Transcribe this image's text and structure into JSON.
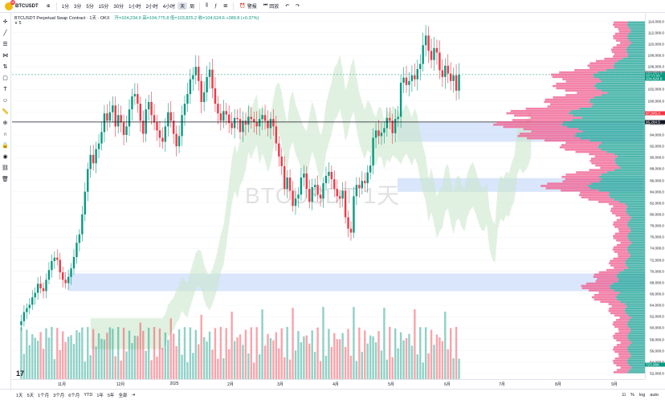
{
  "topbar": {
    "symbol": "BTCUSDT",
    "badge": "11",
    "timeframes": [
      "1分",
      "3分",
      "5分",
      "15分",
      "30分",
      "1小时",
      "2小时",
      "4小时",
      "天",
      "周"
    ],
    "active_timeframe": "天",
    "alert_label": "警报",
    "replay_label": "回放"
  },
  "legend": {
    "title": "BTCUSDT Perpetual Swap Contract · 1天 · OKX",
    "ohlc": "开=104,234.9  高=104,775.8  低=103,825.2  收=104,624.6  +389.8 (+0.37%)",
    "indicator": "∨ 5"
  },
  "watermark": "BTCUSDT 1天",
  "price_scale": {
    "ticks": [
      "114,000.0",
      "112,000.0",
      "110,000.0",
      "108,000.0",
      "106,000.0",
      "104,000.0",
      "102,000.0",
      "100,000.0",
      "98,000.0",
      "96,000.0",
      "94,000.0",
      "92,000.0",
      "90,000.0",
      "88,000.0",
      "86,000.0",
      "84,000.0",
      "82,000.0",
      "80,000.0",
      "78,000.0",
      "76,000.0",
      "74,000.0",
      "72,000.0",
      "70,000.0",
      "68,000.0",
      "66,000.0",
      "64,000.0",
      "62,000.0",
      "60,000.0",
      "58,000.0",
      "56,000.0",
      "54,000.0",
      "52,000.0"
    ],
    "labels": [
      {
        "text": "104,851.7",
        "color": "#787b86"
      },
      {
        "text": "104,624.6",
        "color": "#089981"
      },
      {
        "text": "20:27:06",
        "color": "#089981"
      },
      {
        "text": "104,624.6",
        "color": "#089981"
      },
      {
        "text": "97,845.0",
        "color": "#f23645"
      },
      {
        "text": "96,284.5",
        "color": "#131722"
      },
      {
        "text": "723.96K",
        "color": "#089981"
      }
    ]
  },
  "time_scale": {
    "ticks": [
      "11月",
      "12月",
      "2025",
      "2月",
      "3月",
      "4月",
      "5月",
      "6月",
      "7月",
      "8月",
      "9月"
    ]
  },
  "bottombar": {
    "ranges": [
      "1天",
      "5天",
      "1个月",
      "3个月",
      "6个月",
      "YTD",
      "1年",
      "5年",
      "全部"
    ]
  },
  "colors": {
    "up": "#089981",
    "down": "#f23645",
    "cloud_up": "#c8e6c9",
    "cloud_down": "#f8d7da",
    "zone_blue": "#bbd2f7",
    "vp_up": "#26a69a",
    "vp_down": "#f06292"
  },
  "chart_data": {
    "type": "candlestick",
    "title": "BTCUSDT Perpetual Swap Contract · 1天 · OKX",
    "ylim": [
      51000,
      115500
    ],
    "last_price": 104624.6,
    "reference_line": 96284.5,
    "closes": [
      60500,
      61200,
      62800,
      63500,
      64100,
      65400,
      66200,
      67800,
      67000,
      66500,
      68500,
      70200,
      71800,
      72400,
      72000,
      69800,
      68500,
      67900,
      69000,
      70500,
      72500,
      75000,
      76500,
      80000,
      84000,
      88000,
      90500,
      89000,
      91500,
      92500,
      94500,
      97800,
      96500,
      98000,
      99200,
      95500,
      97500,
      96200,
      94000,
      95500,
      98500,
      100800,
      101200,
      99500,
      96500,
      94200,
      98500,
      99800,
      97500,
      96200,
      94800,
      93500,
      92800,
      95500,
      98000,
      96500,
      94200,
      92000,
      93800,
      97500,
      99500,
      101200,
      103800,
      104500,
      106000,
      103500,
      99800,
      101500,
      104200,
      105500,
      102200,
      99500,
      97800,
      96500,
      98200,
      97600,
      96100,
      95200,
      97000,
      96800,
      94500,
      96500,
      95800,
      97200,
      96800,
      96300,
      95500,
      96800,
      97500,
      96500,
      95200,
      96800,
      95500,
      92500,
      90200,
      88500,
      84500,
      86500,
      84200,
      81500,
      82800,
      83500,
      86500,
      87200,
      84500,
      82200,
      84800,
      85200,
      83500,
      82800,
      85500,
      86800,
      87500,
      86200,
      84500,
      83200,
      82800,
      84200,
      79500,
      77500,
      76800,
      83200,
      85200,
      84600,
      85900,
      85500,
      87400,
      88600,
      93500,
      94800,
      93800,
      94400,
      95200,
      97000,
      96500,
      94300,
      96800,
      97200,
      103200,
      104100,
      102800,
      103500,
      104500,
      103800,
      105600,
      106500,
      109800,
      111500,
      108800,
      107200,
      109300,
      108500,
      105400,
      104200,
      106200,
      104800,
      103500,
      104500,
      101800,
      104624.6
    ],
    "volume_profile_note": "visible range volume profile on right"
  }
}
